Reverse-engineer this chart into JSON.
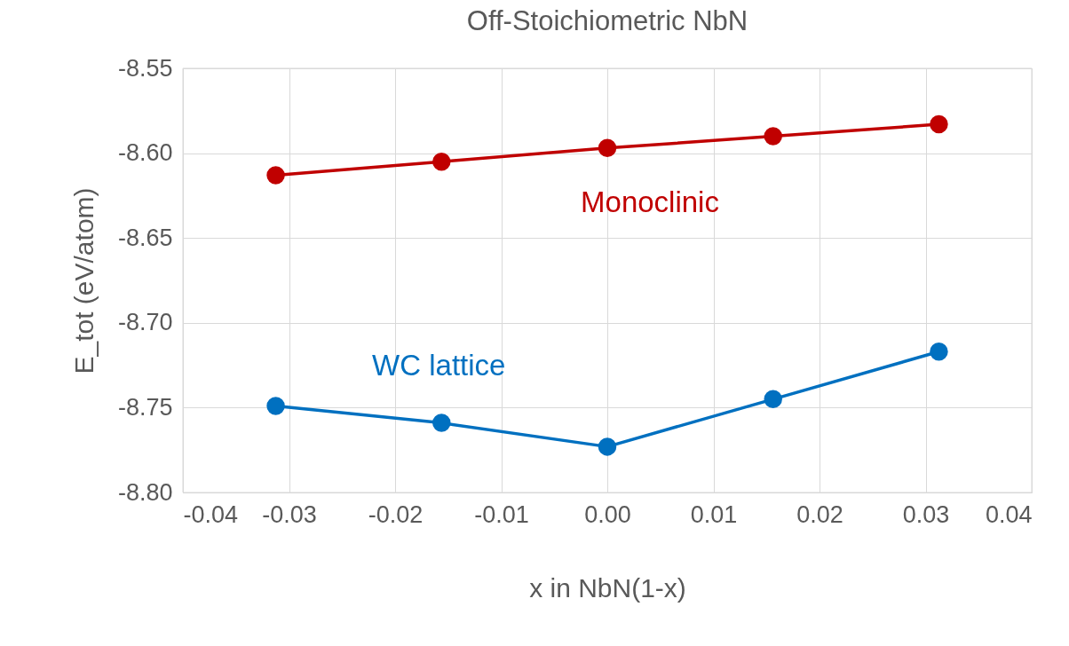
{
  "chart_data": {
    "type": "line",
    "title": "Off-Stoichiometric NbN",
    "xlabel": "x in NbN(1-x)",
    "ylabel": "E_tot (eV/atom)",
    "x": [
      -0.03125,
      -0.015625,
      0,
      0.015625,
      0.03125
    ],
    "series": [
      {
        "name": "Monoclinic",
        "color": "#c00000",
        "values": [
          -8.613,
          -8.605,
          -8.597,
          -8.59,
          -8.583
        ]
      },
      {
        "name": "WC lattice",
        "color": "#0070c0",
        "values": [
          -8.749,
          -8.759,
          -8.773,
          -8.745,
          -8.717
        ]
      }
    ],
    "xlim": [
      -0.04,
      0.04
    ],
    "xticks": [
      {
        "value": -0.04,
        "label": "-0.04"
      },
      {
        "value": -0.03,
        "label": "-0.03"
      },
      {
        "value": -0.02,
        "label": "-0.02"
      },
      {
        "value": -0.01,
        "label": "-0.01"
      },
      {
        "value": 0,
        "label": "0.00"
      },
      {
        "value": 0.01,
        "label": "0.01"
      },
      {
        "value": 0.02,
        "label": "0.02"
      },
      {
        "value": 0.03,
        "label": "0.03"
      },
      {
        "value": 0.04,
        "label": "0.04"
      }
    ],
    "ylim": [
      -8.8,
      -8.55
    ],
    "yticks": [
      {
        "value": -8.8,
        "label": "-8.80"
      },
      {
        "value": -8.75,
        "label": "-8.75"
      },
      {
        "value": -8.7,
        "label": "-8.70"
      },
      {
        "value": -8.65,
        "label": "-8.65"
      },
      {
        "value": -8.6,
        "label": "-8.60"
      },
      {
        "value": -8.55,
        "label": "-8.55"
      }
    ],
    "grid": true,
    "legend": false,
    "marker": "circle",
    "line_style": "solid"
  }
}
